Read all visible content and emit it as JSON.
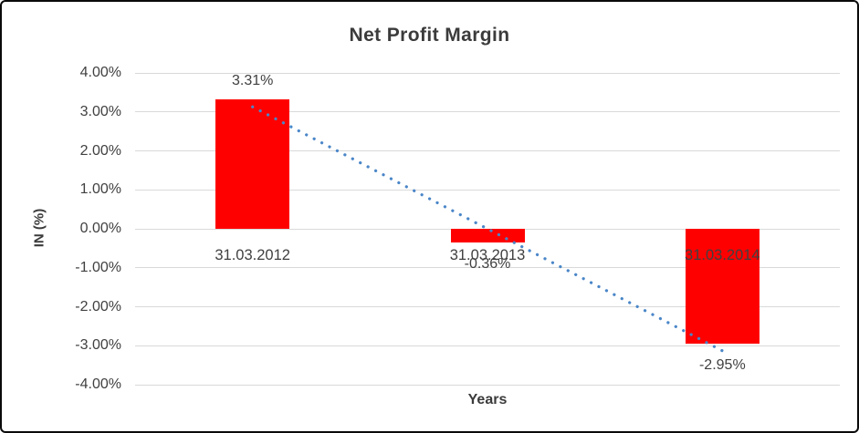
{
  "chart_data": {
    "type": "bar",
    "title": "Net Profit Margin",
    "xlabel": "Years",
    "ylabel": "IN (%)",
    "categories": [
      "31.03.2012",
      "31.03.2013",
      "31.03.2014"
    ],
    "values": [
      3.31,
      -0.36,
      -2.95
    ],
    "data_labels": [
      "3.31%",
      "-0.36%",
      "-2.95%"
    ],
    "y_ticks": [
      "4.00%",
      "3.00%",
      "2.00%",
      "1.00%",
      "0.00%",
      "-1.00%",
      "-2.00%",
      "-3.00%",
      "-4.00%"
    ],
    "y_tick_values": [
      4,
      3,
      2,
      1,
      0,
      -1,
      -2,
      -3,
      -4
    ],
    "ylim": [
      -4,
      4
    ],
    "grid": true,
    "legend": "none",
    "bar_color": "#ff0000",
    "text_color": "#404040",
    "gridline_color": "#d9d9d9",
    "trendline": {
      "type": "linear",
      "style": "dotted",
      "color": "#4a86c8"
    }
  }
}
